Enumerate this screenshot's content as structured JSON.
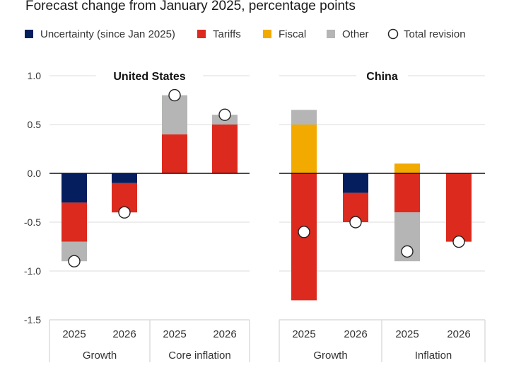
{
  "chart_data": {
    "type": "bar",
    "stacked": true,
    "title": "Forecast change from January 2025, percentage points",
    "ylabel": "",
    "ylim": [
      -1.5,
      1.0
    ],
    "yticks": [
      1.0,
      0.5,
      0.0,
      -0.5,
      -1.0,
      -1.5
    ],
    "ytick_labels": [
      "1.0",
      "0.5",
      "0.0",
      "-0.5",
      "-1.0",
      "-1.5"
    ],
    "grid": true,
    "legend_position": "top",
    "legend": [
      {
        "key": "uncertainty",
        "label": "Uncertainty (since Jan 2025)",
        "color": "#041e5e",
        "shape": "square"
      },
      {
        "key": "tariffs",
        "label": "Tariffs",
        "color": "#dc2a1e",
        "shape": "square"
      },
      {
        "key": "fiscal",
        "label": "Fiscal",
        "color": "#f2aa00",
        "shape": "square"
      },
      {
        "key": "other",
        "label": "Other",
        "color": "#b4b5b4",
        "shape": "square"
      },
      {
        "key": "total",
        "label": "Total revision",
        "color": "#ffffff",
        "shape": "circle"
      }
    ],
    "panels": [
      {
        "title": "United States",
        "groups": [
          {
            "label": "Growth",
            "categories": [
              "2025",
              "2026"
            ]
          },
          {
            "label": "Core inflation",
            "categories": [
              "2025",
              "2026"
            ]
          }
        ],
        "bars": [
          {
            "group": "Growth",
            "year": "2025",
            "uncertainty": -0.3,
            "tariffs": -0.4,
            "fiscal": 0.0,
            "other": -0.2,
            "total": -0.9
          },
          {
            "group": "Growth",
            "year": "2026",
            "uncertainty": -0.1,
            "tariffs": -0.3,
            "fiscal": 0.0,
            "other": 0.0,
            "total": -0.4
          },
          {
            "group": "Core inflation",
            "year": "2025",
            "uncertainty": 0.0,
            "tariffs": 0.4,
            "fiscal": 0.0,
            "other": 0.4,
            "total": 0.8
          },
          {
            "group": "Core inflation",
            "year": "2026",
            "uncertainty": 0.0,
            "tariffs": 0.5,
            "fiscal": 0.0,
            "other": 0.1,
            "total": 0.6
          }
        ]
      },
      {
        "title": "China",
        "groups": [
          {
            "label": "Growth",
            "categories": [
              "2025",
              "2026"
            ]
          },
          {
            "label": "Inflation",
            "categories": [
              "2025",
              "2026"
            ]
          }
        ],
        "bars": [
          {
            "group": "Growth",
            "year": "2025",
            "uncertainty": 0.0,
            "tariffs": -1.3,
            "fiscal": 0.5,
            "other": 0.15,
            "total": -0.6
          },
          {
            "group": "Growth",
            "year": "2026",
            "uncertainty": -0.2,
            "tariffs": -0.3,
            "fiscal": 0.0,
            "other": 0.0,
            "total": -0.5
          },
          {
            "group": "Inflation",
            "year": "2025",
            "uncertainty": 0.0,
            "tariffs": -0.4,
            "fiscal": 0.1,
            "other": -0.5,
            "total": -0.8
          },
          {
            "group": "Inflation",
            "year": "2026",
            "uncertainty": 0.0,
            "tariffs": -0.7,
            "fiscal": 0.0,
            "other": 0.0,
            "total": -0.7
          }
        ]
      }
    ]
  }
}
